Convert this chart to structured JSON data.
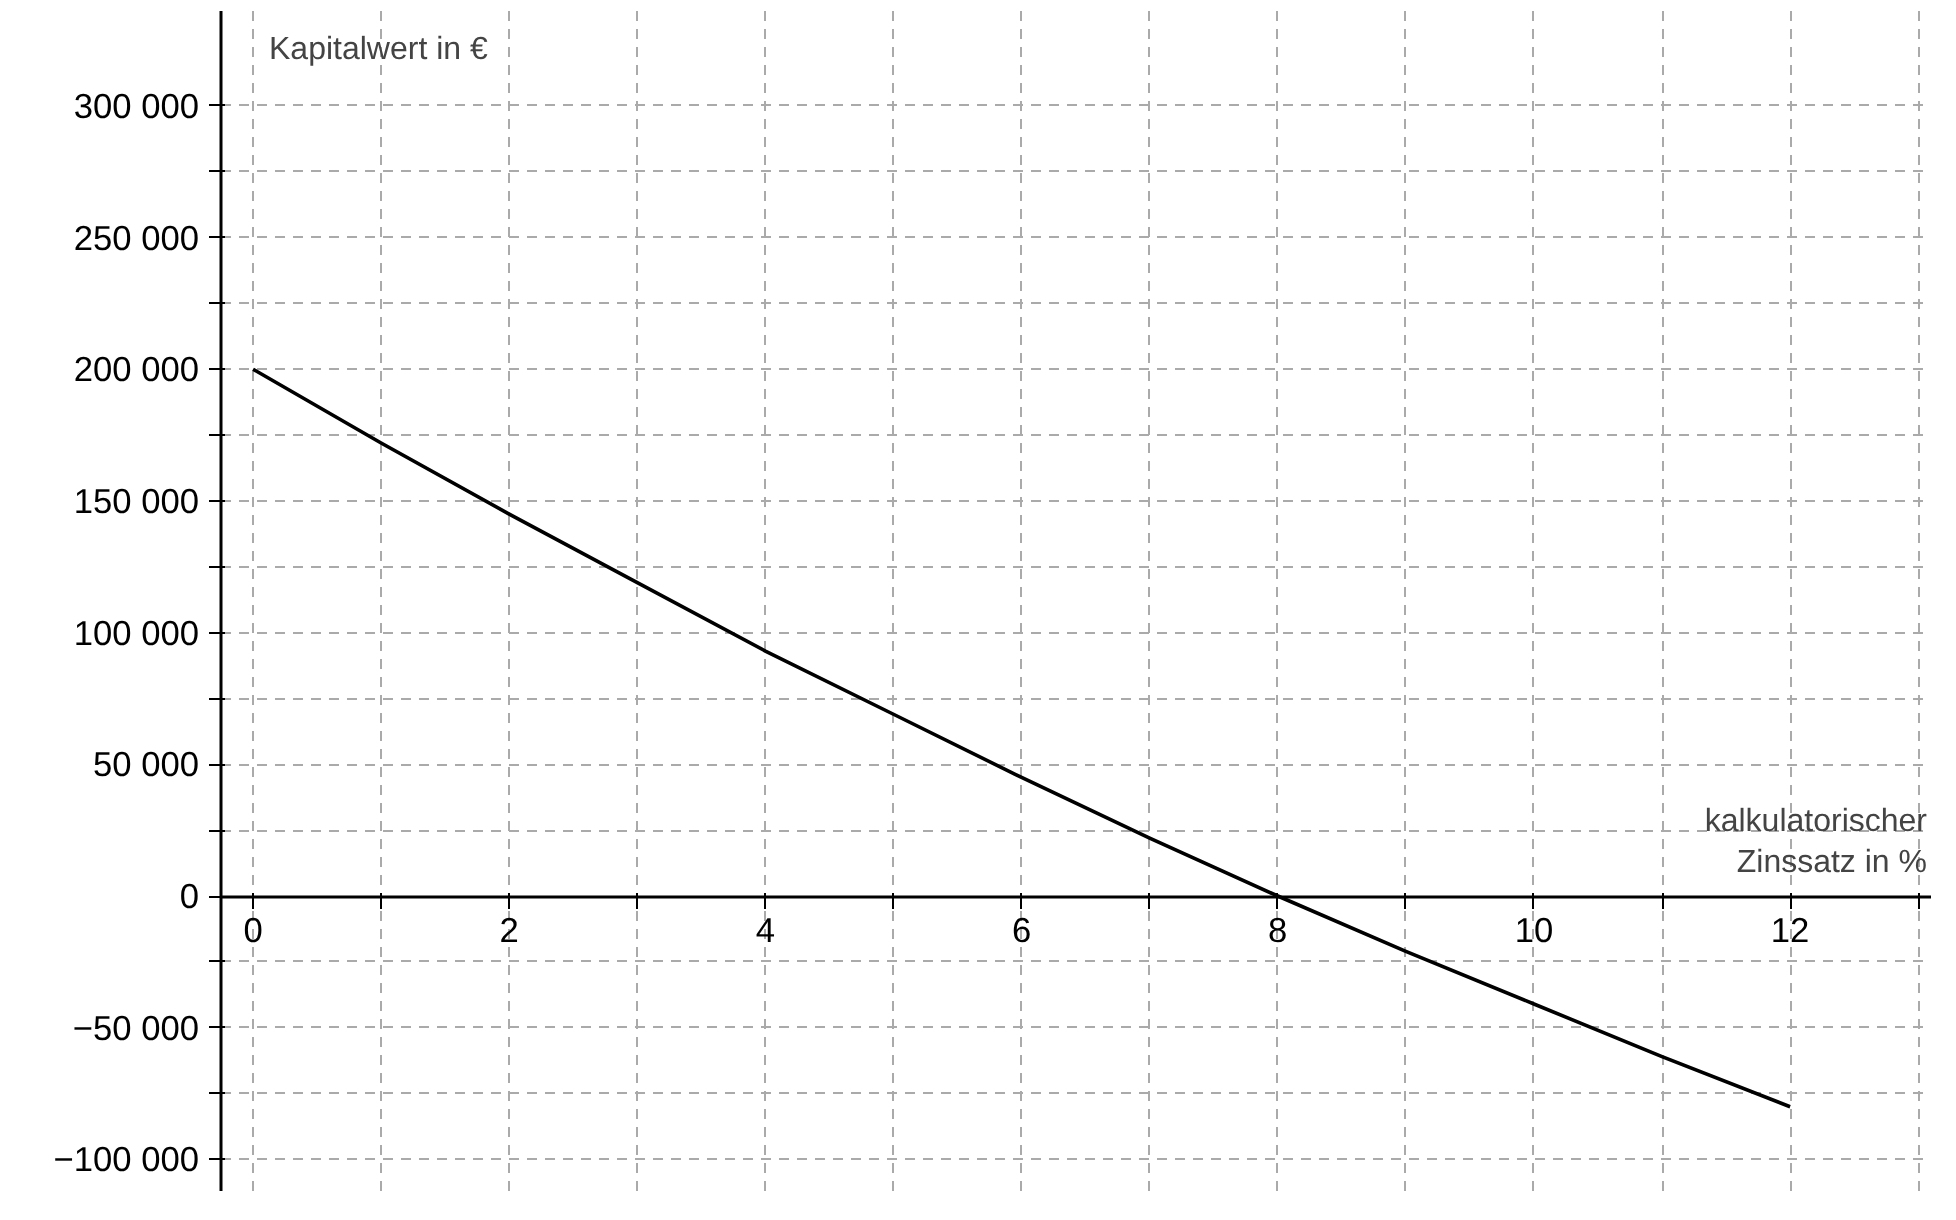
{
  "chart_data": {
    "type": "line",
    "xlabel": "kalkulatorischer\nZinssatz in %",
    "ylabel": "Kapitalwert in €",
    "x": [
      0,
      1,
      2,
      3,
      4,
      5,
      6,
      7,
      8,
      9,
      10,
      11,
      12
    ],
    "series": [
      {
        "color": "#000000",
        "values": [
          200000,
          172000,
          145000,
          119000,
          93000,
          69000,
          45000,
          22000,
          0,
          -21000,
          -41000,
          -61000,
          -80000
        ]
      }
    ],
    "xlim": [
      -0.25,
      13.1
    ],
    "ylim": [
      -112000,
      336000
    ],
    "xticks": [
      0,
      {
        "value": 1,
        "label": null
      },
      2,
      {
        "value": 3,
        "label": null
      },
      4,
      {
        "value": 5,
        "label": null
      },
      6,
      {
        "value": 7,
        "label": null
      },
      8,
      {
        "value": 9,
        "label": null
      },
      10,
      {
        "value": 11,
        "label": null
      },
      12,
      {
        "value": 13,
        "label": null
      }
    ],
    "yticks": [
      {
        "value": -100000,
        "label": "−100 000"
      },
      {
        "value": -75000,
        "label": null
      },
      {
        "value": -50000,
        "label": "−50 000"
      },
      {
        "value": -25000,
        "label": null
      },
      0,
      {
        "value": 25000,
        "label": null
      },
      {
        "value": 50000,
        "label": "50 000"
      },
      {
        "value": 75000,
        "label": null
      },
      {
        "value": 100000,
        "label": "100 000"
      },
      {
        "value": 125000,
        "label": null
      },
      {
        "value": 150000,
        "label": "150 000"
      },
      {
        "value": 175000,
        "label": null
      },
      {
        "value": 200000,
        "label": "200 000"
      },
      {
        "value": 225000,
        "label": null
      },
      {
        "value": 250000,
        "label": "250 000"
      },
      {
        "value": 275000,
        "label": null
      },
      {
        "value": 300000,
        "label": "300 000"
      }
    ],
    "grid": true,
    "marker": "none",
    "line_style": "solid"
  }
}
